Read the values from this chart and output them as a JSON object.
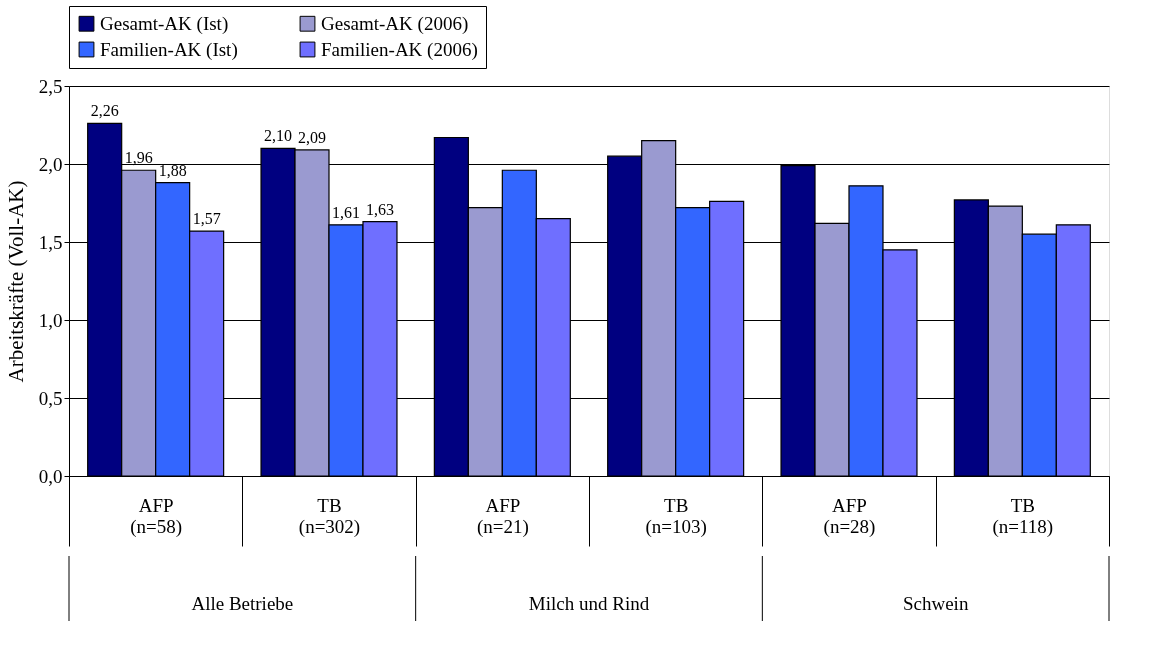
{
  "chart_data": {
    "type": "bar",
    "ylabel": "Arbeitskräfte (Voll-AK)",
    "categories": [
      "AFP\n(n=58)",
      "TB\n(n=302)",
      "AFP\n(n=21)",
      "TB\n(n=103)",
      "AFP\n(n=28)",
      "TB\n(n=118)"
    ],
    "annotations": [
      "Alle Betriebe",
      "Milch und Rind",
      "Schwein"
    ],
    "series": [
      {
        "name": "Gesamt-AK (Ist)",
        "color": "#000080",
        "values": [
          2.26,
          2.1,
          2.17,
          2.05,
          1.99,
          1.77
        ],
        "value_labels": [
          "2,26",
          "2,10",
          null,
          null,
          null,
          null
        ]
      },
      {
        "name": "Gesamt-AK (2006)",
        "color": "#9a9ad0",
        "values": [
          1.96,
          2.09,
          1.72,
          2.15,
          1.62,
          1.73
        ],
        "value_labels": [
          "1,96",
          "2,09",
          null,
          null,
          null,
          null
        ]
      },
      {
        "name": "Familien-AK (Ist)",
        "color": "#3366ff",
        "values": [
          1.88,
          1.61,
          1.96,
          1.72,
          1.86,
          1.55
        ],
        "value_labels": [
          "1,88",
          "1,61",
          null,
          null,
          null,
          null
        ]
      },
      {
        "name": "Familien-AK (2006)",
        "color": "#6f6fff",
        "values": [
          1.57,
          1.63,
          1.65,
          1.76,
          1.45,
          1.61
        ],
        "value_labels": [
          "1,57",
          "1,63",
          null,
          null,
          null,
          null
        ]
      }
    ],
    "ylim": [
      0,
      2.5
    ],
    "yticks": [
      {
        "value": 0,
        "label": "0,0"
      },
      {
        "value": 0.5,
        "label": "0,5"
      },
      {
        "value": 1,
        "label": "1,0"
      },
      {
        "value": 1.5,
        "label": "1,5"
      },
      {
        "value": 2,
        "label": "2,0"
      },
      {
        "value": 2.5,
        "label": "2,5"
      }
    ],
    "grid": "y",
    "legend": "top"
  }
}
